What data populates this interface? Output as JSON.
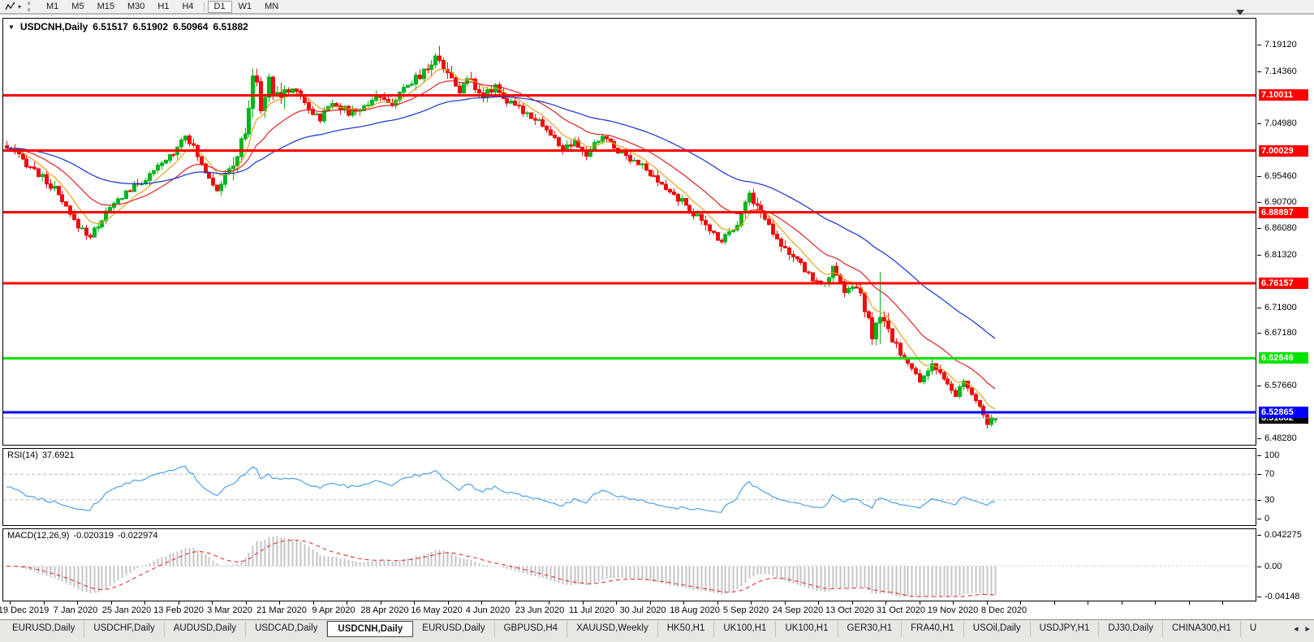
{
  "toolbar": {
    "timeframes": [
      "M1",
      "M5",
      "M15",
      "M30",
      "H1",
      "H4",
      "D1",
      "W1",
      "MN"
    ],
    "active_timeframe": "D1"
  },
  "chart": {
    "title_symbol": "USDCNH,Daily",
    "quote": {
      "open": "6.51517",
      "high": "6.51902",
      "low": "6.50964",
      "close": "6.51882"
    }
  },
  "price_axis": {
    "ticks": [
      "7.19120",
      "7.14360",
      "7.04980",
      "6.95460",
      "6.90700",
      "6.86080",
      "6.81320",
      "6.71800",
      "6.67180",
      "6.57660",
      "6.48280"
    ],
    "levels": [
      {
        "label": "7.10011",
        "price": 7.10011,
        "color": "#fe0000",
        "text_color": "#ffffff"
      },
      {
        "label": "7.00029",
        "price": 7.00029,
        "color": "#fe0000",
        "text_color": "#ffffff"
      },
      {
        "label": "6.88897",
        "price": 6.88897,
        "color": "#fe0000",
        "text_color": "#ffffff"
      },
      {
        "label": "6.76157",
        "price": 6.76157,
        "color": "#fe0000",
        "text_color": "#ffffff"
      },
      {
        "label": "6.62646",
        "price": 6.62646,
        "color": "#00e400",
        "text_color": "#ffffff"
      },
      {
        "label": "6.52865",
        "price": 6.52865,
        "color": "#0000fe",
        "text_color": "#ffffff"
      }
    ],
    "current_price": {
      "label": "6.51882",
      "price": 6.51882,
      "color": "#000000",
      "text_color": "#ffffff"
    }
  },
  "rsi": {
    "label": "RSI(14)",
    "value": "37.6921",
    "axis": [
      "100",
      "70",
      "30",
      "0"
    ],
    "dashed_levels": [
      70,
      30
    ]
  },
  "macd": {
    "label": "MACD(12,26,9)",
    "main_value": "-0.020319",
    "signal_value": "-0.022974",
    "axis": [
      "0.042275",
      "0.00",
      "-0.04148"
    ],
    "axis_max": 0.042275,
    "axis_min": -0.04148
  },
  "date_axis": [
    "19 Dec 2019",
    "7 Jan 2020",
    "25 Jan 2020",
    "13 Feb 2020",
    "3 Mar 2020",
    "21 Mar 2020",
    "9 Apr 2020",
    "28 Apr 2020",
    "16 May 2020",
    "4 Jun 2020",
    "23 Jun 2020",
    "11 Jul 2020",
    "30 Jul 2020",
    "18 Aug 2020",
    "5 Sep 2020",
    "24 Sep 2020",
    "13 Oct 2020",
    "31 Oct 2020",
    "19 Nov 2020",
    "8 Dec 2020"
  ],
  "tabs": {
    "items": [
      "EURUSD,Daily",
      "USDCHF,Daily",
      "AUDUSD,Daily",
      "USDCAD,Daily",
      "USDCNH,Daily",
      "EURUSD,Daily",
      "GBPUSD,H4",
      "XAUUSD,Weekly",
      "HK50,H1",
      "UK100,H1",
      "UK100,H1",
      "GER30,H1",
      "FRA40,H1",
      "USOil,Daily",
      "USDJPY,H1",
      "DJ30,Daily",
      "CHINA300,H1",
      "U"
    ],
    "active_index": 4
  },
  "colors": {
    "up": "#00b61f",
    "down": "#ee0e0e",
    "ma_fast": "#e3a21e",
    "ma_mid": "#dd2222",
    "ma_slow": "#1133cc",
    "rsi": "#3e9ae8",
    "macd_bar": "#c4c4c4",
    "macd_signal": "#e02020",
    "current_line": "#b8b8b8"
  },
  "chart_data": {
    "type": "candlestick",
    "symbol": "USDCNH",
    "timeframe": "Daily",
    "visible_range": {
      "start": "19 Dec 2019",
      "end": "8 Dec 2020"
    },
    "y_range": [
      6.4828,
      7.1912
    ],
    "num_candles": 250,
    "last_ohlc": {
      "open": 6.51517,
      "high": 6.51902,
      "low": 6.50964,
      "close": 6.51882
    },
    "price_path_anchors": [
      [
        0,
        7.005
      ],
      [
        6,
        6.972
      ],
      [
        12,
        6.93
      ],
      [
        17,
        6.872
      ],
      [
        21,
        6.846
      ],
      [
        25,
        6.888
      ],
      [
        30,
        6.926
      ],
      [
        36,
        6.954
      ],
      [
        42,
        6.998
      ],
      [
        45,
        7.032
      ],
      [
        49,
        6.976
      ],
      [
        53,
        6.932
      ],
      [
        57,
        6.976
      ],
      [
        60,
        7.03
      ],
      [
        62,
        7.135
      ],
      [
        64,
        7.085
      ],
      [
        66,
        7.118
      ],
      [
        69,
        7.098
      ],
      [
        73,
        7.114
      ],
      [
        76,
        7.076
      ],
      [
        79,
        7.058
      ],
      [
        82,
        7.09
      ],
      [
        86,
        7.068
      ],
      [
        90,
        7.078
      ],
      [
        93,
        7.102
      ],
      [
        96,
        7.082
      ],
      [
        100,
        7.105
      ],
      [
        103,
        7.132
      ],
      [
        106,
        7.152
      ],
      [
        109,
        7.17
      ],
      [
        111,
        7.138
      ],
      [
        114,
        7.112
      ],
      [
        117,
        7.13
      ],
      [
        120,
        7.098
      ],
      [
        123,
        7.118
      ],
      [
        126,
        7.088
      ],
      [
        130,
        7.072
      ],
      [
        134,
        7.056
      ],
      [
        137,
        7.028
      ],
      [
        140,
        7.004
      ],
      [
        143,
        7.012
      ],
      [
        146,
        6.992
      ],
      [
        150,
        7.028
      ],
      [
        153,
        7.006
      ],
      [
        156,
        6.992
      ],
      [
        159,
        6.98
      ],
      [
        162,
        6.956
      ],
      [
        165,
        6.936
      ],
      [
        168,
        6.92
      ],
      [
        171,
        6.902
      ],
      [
        174,
        6.88
      ],
      [
        177,
        6.856
      ],
      [
        180,
        6.84
      ],
      [
        184,
        6.872
      ],
      [
        187,
        6.922
      ],
      [
        190,
        6.888
      ],
      [
        193,
        6.856
      ],
      [
        196,
        6.824
      ],
      [
        199,
        6.8
      ],
      [
        202,
        6.778
      ],
      [
        205,
        6.756
      ],
      [
        208,
        6.786
      ],
      [
        211,
        6.748
      ],
      [
        214,
        6.756
      ],
      [
        216,
        6.712
      ],
      [
        218,
        6.668
      ],
      [
        220,
        6.7
      ],
      [
        222,
        6.672
      ],
      [
        224,
        6.648
      ],
      [
        227,
        6.615
      ],
      [
        230,
        6.585
      ],
      [
        233,
        6.618
      ],
      [
        236,
        6.585
      ],
      [
        239,
        6.558
      ],
      [
        241,
        6.585
      ],
      [
        243,
        6.56
      ],
      [
        245,
        6.535
      ],
      [
        247,
        6.512
      ],
      [
        249,
        6.51882
      ]
    ],
    "horizontal_levels": [
      7.10011,
      7.00029,
      6.88897,
      6.76157,
      6.62646,
      6.52865
    ],
    "moving_averages": [
      {
        "period": 8,
        "color_key": "ma_fast"
      },
      {
        "period": 21,
        "color_key": "ma_mid"
      },
      {
        "period": 55,
        "color_key": "ma_slow"
      }
    ],
    "rsi": {
      "period": 14,
      "last_value": 37.6921
    },
    "macd": {
      "fast": 12,
      "slow": 26,
      "signal": 9,
      "last_main": -0.020319,
      "last_signal": -0.022974
    }
  }
}
